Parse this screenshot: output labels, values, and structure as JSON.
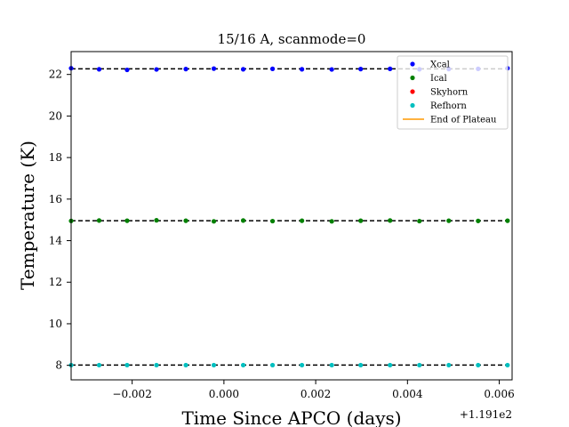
{
  "chart_data": {
    "type": "scatter",
    "title": "15/16 A, scanmode=0",
    "xlabel": "Time Since APCO (days)",
    "ylabel": "Temperature (K)",
    "x_offset_label": "+1.191e2",
    "xlim": [
      -0.00333,
      0.00628
    ],
    "ylim": [
      7.3,
      23.1
    ],
    "x_ticks": [
      -0.002,
      0.0,
      0.002,
      0.004,
      0.006
    ],
    "x_tick_labels": [
      "−0.002",
      "0.000",
      "0.002",
      "0.004",
      "0.006"
    ],
    "y_ticks": [
      8,
      10,
      12,
      14,
      16,
      18,
      20,
      22
    ],
    "y_tick_labels": [
      "8",
      "10",
      "12",
      "14",
      "16",
      "18",
      "20",
      "22"
    ],
    "x": [
      -0.00333,
      -0.00272,
      -0.00211,
      -0.00147,
      -0.00083,
      -0.00022,
      0.00042,
      0.00106,
      0.0017,
      0.00235,
      0.00298,
      0.00362,
      0.00426,
      0.0049,
      0.00554,
      0.00618
    ],
    "series": [
      {
        "name": "Xcal",
        "color": "#0000ff",
        "values": [
          22.3,
          22.25,
          22.22,
          22.24,
          22.26,
          22.28,
          22.25,
          22.27,
          22.25,
          22.24,
          22.26,
          22.27,
          22.25,
          22.26,
          22.27,
          22.3
        ]
      },
      {
        "name": "Ical",
        "color": "#008000",
        "values": [
          14.95,
          14.97,
          14.96,
          14.98,
          14.96,
          14.93,
          14.97,
          14.94,
          14.96,
          14.93,
          14.96,
          14.97,
          14.94,
          14.96,
          14.95,
          14.96
        ]
      },
      {
        "name": "Skyhorn",
        "color": "#ff0000",
        "values": []
      },
      {
        "name": "Refhorn",
        "color": "#00bfbf",
        "values": [
          8.01,
          8.01,
          8.01,
          8.01,
          8.01,
          8.01,
          8.01,
          8.01,
          8.01,
          8.01,
          8.01,
          8.01,
          8.01,
          8.01,
          8.01,
          8.01
        ]
      }
    ],
    "reference_lines": [
      {
        "y": 22.27,
        "style": "dashed",
        "color": "#000000"
      },
      {
        "y": 14.96,
        "style": "dashed",
        "color": "#000000"
      },
      {
        "y": 8.01,
        "style": "dashed",
        "color": "#000000"
      }
    ],
    "plateau_line": {
      "name": "End of Plateau",
      "color": "#ff9900"
    },
    "legend_position": "top-right",
    "grid": false
  }
}
